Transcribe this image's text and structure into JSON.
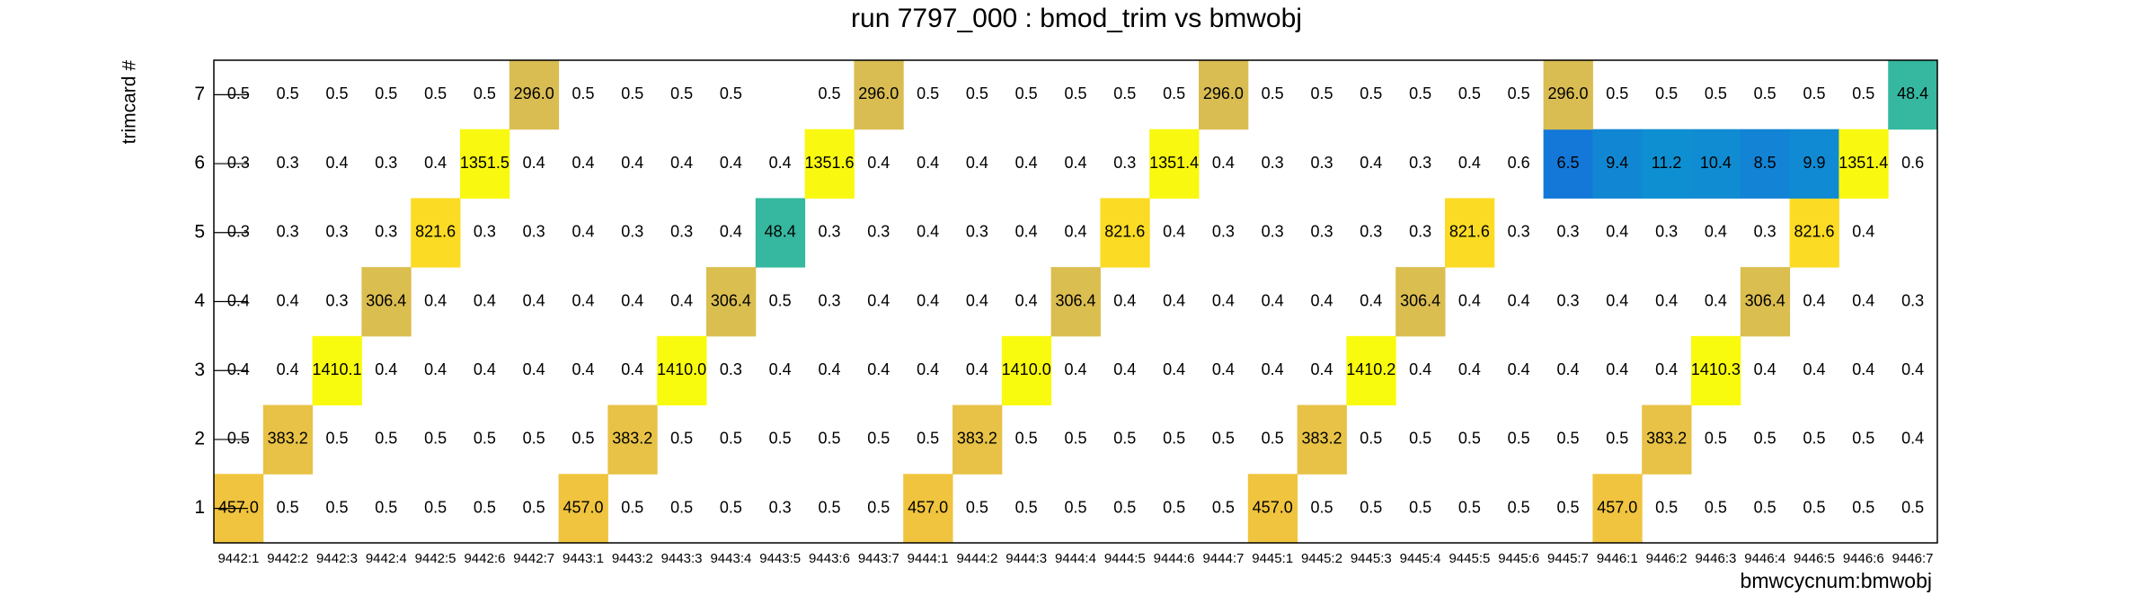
{
  "chart_data": {
    "type": "heatmap",
    "title": "run 7797_000 : bmod_trim vs bmwobj",
    "x_label": "bmwcycnum:bmwobj",
    "y_label": "trimcard #",
    "log_z": true,
    "categories": [
      "9442:1",
      "9442:2",
      "9442:3",
      "9442:4",
      "9442:5",
      "9442:6",
      "9442:7",
      "9443:1",
      "9443:2",
      "9443:3",
      "9443:4",
      "9443:5",
      "9443:6",
      "9443:7",
      "9444:1",
      "9444:2",
      "9444:3",
      "9444:4",
      "9444:5",
      "9444:6",
      "9444:7",
      "9445:1",
      "9445:2",
      "9445:3",
      "9445:4",
      "9445:5",
      "9445:6",
      "9445:7",
      "9446:1",
      "9446:2",
      "9446:3",
      "9446:4",
      "9446:5",
      "9446:6",
      "9446:7"
    ],
    "y_categories": [
      "1",
      "2",
      "3",
      "4",
      "5",
      "6",
      "7"
    ],
    "values": [
      [
        457.0,
        0.5,
        0.5,
        0.5,
        0.5,
        0.5,
        0.5,
        457.0,
        0.5,
        0.5,
        0.5,
        0.3,
        0.5,
        0.5,
        457.0,
        0.5,
        0.5,
        0.5,
        0.5,
        0.5,
        0.5,
        457.0,
        0.5,
        0.5,
        0.5,
        0.5,
        0.5,
        0.5,
        457.0,
        0.5,
        0.5,
        0.5,
        0.5,
        0.5,
        0.5
      ],
      [
        0.5,
        383.2,
        0.5,
        0.5,
        0.5,
        0.5,
        0.5,
        0.5,
        383.2,
        0.5,
        0.5,
        0.5,
        0.5,
        0.5,
        0.5,
        383.2,
        0.5,
        0.5,
        0.5,
        0.5,
        0.5,
        0.5,
        383.2,
        0.5,
        0.5,
        0.5,
        0.5,
        0.5,
        0.5,
        383.2,
        0.5,
        0.5,
        0.5,
        0.5,
        0.4
      ],
      [
        0.4,
        0.4,
        1410.1,
        0.4,
        0.4,
        0.4,
        0.4,
        0.4,
        0.4,
        1410.0,
        0.3,
        0.4,
        0.4,
        0.4,
        0.4,
        0.4,
        1410.0,
        0.4,
        0.4,
        0.4,
        0.4,
        0.4,
        0.4,
        1410.2,
        0.4,
        0.4,
        0.4,
        0.4,
        0.4,
        0.4,
        1410.3,
        0.4,
        0.4,
        0.4,
        0.4
      ],
      [
        0.4,
        0.4,
        0.3,
        306.4,
        0.4,
        0.4,
        0.4,
        0.4,
        0.4,
        0.4,
        306.4,
        0.5,
        0.3,
        0.4,
        0.4,
        0.4,
        0.4,
        306.4,
        0.4,
        0.4,
        0.4,
        0.4,
        0.4,
        0.4,
        306.4,
        0.4,
        0.4,
        0.3,
        0.4,
        0.4,
        0.4,
        306.4,
        0.4,
        0.4,
        0.3
      ],
      [
        0.3,
        0.3,
        0.3,
        0.3,
        821.6,
        0.3,
        0.3,
        0.4,
        0.3,
        0.3,
        0.4,
        48.4,
        0.3,
        0.3,
        0.4,
        0.3,
        0.4,
        0.4,
        821.6,
        0.4,
        0.3,
        0.3,
        0.3,
        0.3,
        0.3,
        821.6,
        0.3,
        0.3,
        0.4,
        0.3,
        0.4,
        0.3,
        821.6,
        0.4,
        null
      ],
      [
        0.3,
        0.3,
        0.4,
        0.3,
        0.4,
        1351.5,
        0.4,
        0.4,
        0.4,
        0.4,
        0.4,
        0.4,
        1351.6,
        0.4,
        0.4,
        0.4,
        0.4,
        0.4,
        0.3,
        1351.4,
        0.4,
        0.3,
        0.3,
        0.4,
        0.3,
        0.4,
        0.6,
        6.5,
        9.4,
        11.2,
        10.4,
        8.5,
        9.9,
        1351.4,
        0.6
      ],
      [
        0.5,
        0.5,
        0.5,
        0.5,
        0.5,
        0.5,
        296.0,
        0.5,
        0.5,
        0.5,
        0.5,
        null,
        0.5,
        296.0,
        0.5,
        0.5,
        0.5,
        0.5,
        0.5,
        0.5,
        296.0,
        0.5,
        0.5,
        0.5,
        0.5,
        0.5,
        0.5,
        296.0,
        0.5,
        0.5,
        0.5,
        0.5,
        0.5,
        0.5,
        48.4
      ]
    ],
    "value_labels": [
      [
        "457.0",
        "0.5",
        "0.5",
        "0.5",
        "0.5",
        "0.5",
        "0.5",
        "457.0",
        "0.5",
        "0.5",
        "0.5",
        "0.3",
        "0.5",
        "0.5",
        "457.0",
        "0.5",
        "0.5",
        "0.5",
        "0.5",
        "0.5",
        "0.5",
        "457.0",
        "0.5",
        "0.5",
        "0.5",
        "0.5",
        "0.5",
        "0.5",
        "457.0",
        "0.5",
        "0.5",
        "0.5",
        "0.5",
        "0.5",
        "0.5"
      ],
      [
        "0.5",
        "383.2",
        "0.5",
        "0.5",
        "0.5",
        "0.5",
        "0.5",
        "0.5",
        "383.2",
        "0.5",
        "0.5",
        "0.5",
        "0.5",
        "0.5",
        "0.5",
        "383.2",
        "0.5",
        "0.5",
        "0.5",
        "0.5",
        "0.5",
        "0.5",
        "383.2",
        "0.5",
        "0.5",
        "0.5",
        "0.5",
        "0.5",
        "0.5",
        "383.2",
        "0.5",
        "0.5",
        "0.5",
        "0.5",
        "0.4"
      ],
      [
        "0.4",
        "0.4",
        "1410.1",
        "0.4",
        "0.4",
        "0.4",
        "0.4",
        "0.4",
        "0.4",
        "1410.0",
        "0.3",
        "0.4",
        "0.4",
        "0.4",
        "0.4",
        "0.4",
        "1410.0",
        "0.4",
        "0.4",
        "0.4",
        "0.4",
        "0.4",
        "0.4",
        "1410.2",
        "0.4",
        "0.4",
        "0.4",
        "0.4",
        "0.4",
        "0.4",
        "1410.3",
        "0.4",
        "0.4",
        "0.4",
        "0.4"
      ],
      [
        "0.4",
        "0.4",
        "0.3",
        "306.4",
        "0.4",
        "0.4",
        "0.4",
        "0.4",
        "0.4",
        "0.4",
        "306.4",
        "0.5",
        "0.3",
        "0.4",
        "0.4",
        "0.4",
        "0.4",
        "306.4",
        "0.4",
        "0.4",
        "0.4",
        "0.4",
        "0.4",
        "0.4",
        "306.4",
        "0.4",
        "0.4",
        "0.3",
        "0.4",
        "0.4",
        "0.4",
        "306.4",
        "0.4",
        "0.4",
        "0.3"
      ],
      [
        "0.3",
        "0.3",
        "0.3",
        "0.3",
        "821.6",
        "0.3",
        "0.3",
        "0.4",
        "0.3",
        "0.3",
        "0.4",
        "48.4",
        "0.3",
        "0.3",
        "0.4",
        "0.3",
        "0.4",
        "0.4",
        "821.6",
        "0.4",
        "0.3",
        "0.3",
        "0.3",
        "0.3",
        "0.3",
        "821.6",
        "0.3",
        "0.3",
        "0.4",
        "0.3",
        "0.4",
        "0.3",
        "821.6",
        "0.4",
        null
      ],
      [
        "0.3",
        "0.3",
        "0.4",
        "0.3",
        "0.4",
        "1351.5",
        "0.4",
        "0.4",
        "0.4",
        "0.4",
        "0.4",
        "0.4",
        "1351.6",
        "0.4",
        "0.4",
        "0.4",
        "0.4",
        "0.4",
        "0.3",
        "1351.4",
        "0.4",
        "0.3",
        "0.3",
        "0.4",
        "0.3",
        "0.4",
        "0.6",
        "6.5",
        "9.4",
        "11.2",
        "10.4",
        "8.5",
        "9.9",
        "1351.4",
        "0.6"
      ],
      [
        "0.5",
        "0.5",
        "0.5",
        "0.5",
        "0.5",
        "0.5",
        "296.0",
        "0.5",
        "0.5",
        "0.5",
        "0.5",
        null,
        "0.5",
        "296.0",
        "0.5",
        "0.5",
        "0.5",
        "0.5",
        "0.5",
        "0.5",
        "296.0",
        "0.5",
        "0.5",
        "0.5",
        "0.5",
        "0.5",
        "0.5",
        "296.0",
        "0.5",
        "0.5",
        "0.5",
        "0.5",
        "0.5",
        "0.5",
        "48.4"
      ]
    ]
  }
}
